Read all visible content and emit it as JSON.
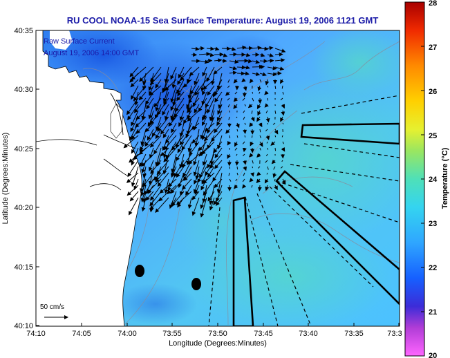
{
  "title": "RU COOL  NOAA-15  Sea Surface Temperature:  August 19, 2006 1121 GMT",
  "inset": {
    "line1": "Raw Surface Current",
    "line2": "August 19, 2006 14:00 GMT"
  },
  "scale_label": "50 cm/s",
  "axes": {
    "xlabel": "Longitude (Degrees:Minutes)",
    "ylabel": "Latitude (Degrees:Minutes)",
    "xticks": [
      "74:10",
      "74:05",
      "74:00",
      "73:55",
      "73:50",
      "73:45",
      "73:40",
      "73:35",
      "73:3"
    ],
    "yticks": [
      "40:35",
      "40:30",
      "40:25",
      "40:20",
      "40:15",
      "40:10"
    ]
  },
  "colorbar": {
    "label": "Temperature (°C)",
    "ticks": [
      "28",
      "27",
      "26",
      "25",
      "24",
      "23",
      "22",
      "21",
      "20"
    ],
    "min": 20,
    "max": 28
  },
  "colors": {
    "title": "#1c1ca8",
    "inset_text": "#1c1ca8",
    "land": "#ffffff",
    "water_base": "#4cb4ff",
    "coast": "#000000"
  }
}
